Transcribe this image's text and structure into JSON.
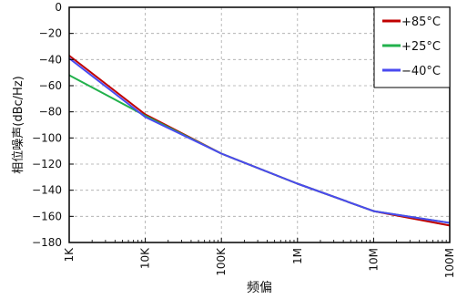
{
  "chart_data": {
    "type": "line",
    "title": "",
    "xlabel": "频偏",
    "ylabel": "相位噪声(dBc/Hz)",
    "xscale": "log",
    "x_ticks": [
      "1K",
      "10K",
      "100K",
      "1M",
      "10M",
      "100M"
    ],
    "x": [
      1000,
      10000,
      100000,
      1000000,
      10000000,
      100000000
    ],
    "ylim": [
      -180,
      0
    ],
    "y_ticks": [
      0,
      -20,
      -40,
      -60,
      -80,
      -100,
      -120,
      -140,
      -160,
      -180
    ],
    "grid": true,
    "legend_position": "top-right",
    "series": [
      {
        "name": "+85°C",
        "color": "#c00000",
        "values": [
          -37,
          -82,
          -112,
          -135,
          -156,
          -167
        ]
      },
      {
        "name": "+25°C",
        "color": "#22b14c",
        "values": [
          -52,
          -83,
          -112,
          -135,
          -156,
          -165
        ]
      },
      {
        "name": "−40°C",
        "color": "#4a4af0",
        "values": [
          -39,
          -84,
          -112,
          -135,
          -156,
          -165
        ]
      }
    ]
  }
}
